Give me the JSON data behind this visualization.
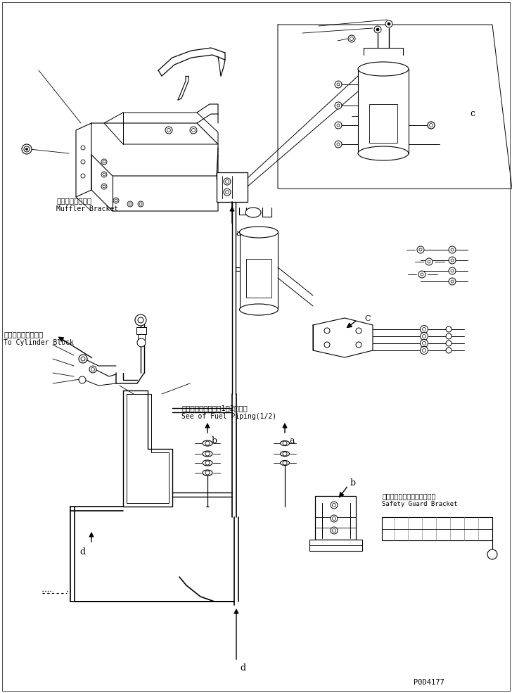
{
  "bg_color": "#ffffff",
  "line_color": "#000000",
  "fig_width": 7.28,
  "fig_height": 9.85,
  "dpi": 100,
  "labels": {
    "muffler_jp": "マフラブラケット",
    "muffler_en": "Muffler Bracket",
    "cylinder_jp": "シリンダブロックへ",
    "cylinder_en": "To Cylinder Block",
    "fuel_jp": "フェルパイピング（1／2）参照",
    "fuel_en": "See of Fuel Piping(1/2)",
    "safety_jp": "セーフティガードブラケット",
    "safety_en": "Safety Guard Bracket",
    "part_no": "P0D4177"
  }
}
